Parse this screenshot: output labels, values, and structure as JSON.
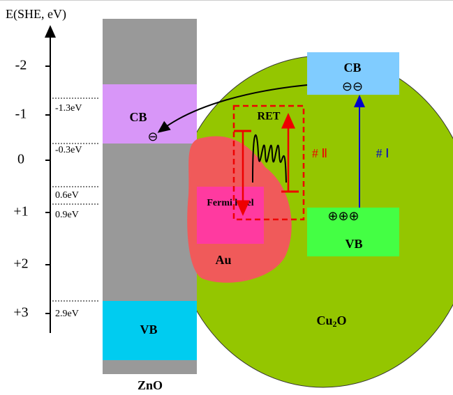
{
  "axis": {
    "label": "E(SHE, eV)",
    "ticks": [
      "-2",
      "-1",
      "0",
      "+1",
      "+2",
      "+3"
    ]
  },
  "levels": [
    "-1.3eV",
    "-0.3eV",
    "0.6eV",
    "0.9eV",
    "2.9eV"
  ],
  "zno": {
    "label": "ZnO",
    "cb": "CB",
    "vb": "VB",
    "charge": "⊖"
  },
  "au": {
    "label": "Au",
    "fermi": "Fermi level"
  },
  "ret": {
    "label": "RET",
    "path": "# Ⅱ"
  },
  "cu2o": {
    "label": [
      "Cu",
      "2",
      "O"
    ],
    "cb": "CB",
    "cb_charge": "⊖⊖",
    "vb": "VB",
    "vb_charge": "⊕⊕⊕",
    "path": "# Ⅰ"
  }
}
